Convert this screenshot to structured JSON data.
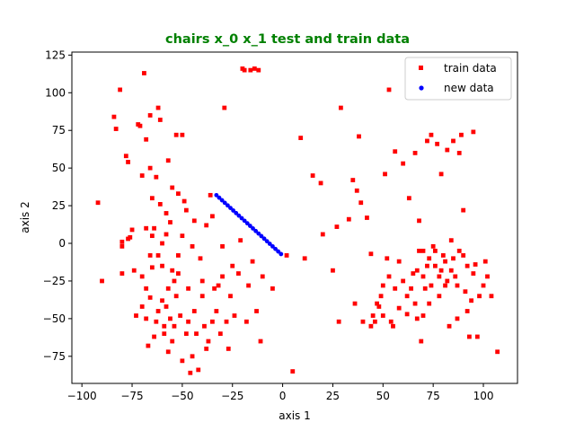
{
  "chart_data": {
    "type": "scatter",
    "title": "chairs x_0 x_1 test and train data",
    "title_color": "#008000",
    "xlabel": "axis 1",
    "ylabel": "axis 2",
    "xlim": [
      -105,
      117
    ],
    "ylim": [
      -93,
      127
    ],
    "xticks": [
      -100,
      -75,
      -50,
      -25,
      0,
      25,
      50,
      75,
      100
    ],
    "yticks": [
      -75,
      -50,
      -25,
      0,
      25,
      50,
      75,
      100,
      125
    ],
    "grid": false,
    "legend_position": "top-right",
    "series": [
      {
        "name": "train data",
        "color": "#ff0000",
        "marker": "square",
        "points": [
          [
            -92,
            27
          ],
          [
            -90,
            -25
          ],
          [
            -84,
            84
          ],
          [
            -83,
            76
          ],
          [
            -81,
            102
          ],
          [
            -80,
            1
          ],
          [
            -80,
            -2
          ],
          [
            -80,
            -20
          ],
          [
            -78,
            58
          ],
          [
            -77,
            54
          ],
          [
            -77,
            3
          ],
          [
            -76,
            4
          ],
          [
            -75,
            9
          ],
          [
            -74,
            -18
          ],
          [
            -73,
            -48
          ],
          [
            -72,
            79
          ],
          [
            -71,
            78
          ],
          [
            -70,
            45
          ],
          [
            -70,
            -42
          ],
          [
            -69,
            113
          ],
          [
            -68,
            69
          ],
          [
            -68,
            10
          ],
          [
            -68,
            -30
          ],
          [
            -68,
            -50
          ],
          [
            -67,
            -68
          ],
          [
            -66,
            50
          ],
          [
            -66,
            85
          ],
          [
            -66,
            -36
          ],
          [
            -65,
            -16
          ],
          [
            -65,
            5
          ],
          [
            -64,
            -62
          ],
          [
            -64,
            10
          ],
          [
            -63,
            44
          ],
          [
            -63,
            -52
          ],
          [
            -62,
            90
          ],
          [
            -62,
            -45
          ],
          [
            -61,
            26
          ],
          [
            -61,
            82
          ],
          [
            -60,
            -15
          ],
          [
            -60,
            -38
          ],
          [
            -59,
            -55
          ],
          [
            -59,
            -60
          ],
          [
            -58,
            20
          ],
          [
            -58,
            -42
          ],
          [
            -57,
            55
          ],
          [
            -57,
            -72
          ],
          [
            -56,
            -50
          ],
          [
            -56,
            14
          ],
          [
            -55,
            37
          ],
          [
            -54,
            -55
          ],
          [
            -54,
            -25
          ],
          [
            -53,
            72
          ],
          [
            -53,
            -35
          ],
          [
            -52,
            33
          ],
          [
            -52,
            -8
          ],
          [
            -51,
            -48
          ],
          [
            -50,
            72
          ],
          [
            -50,
            -78
          ],
          [
            -49,
            28
          ],
          [
            -48,
            22
          ],
          [
            -47,
            -30
          ],
          [
            -47,
            -52
          ],
          [
            -46,
            -86
          ],
          [
            -45,
            -75
          ],
          [
            -44,
            15
          ],
          [
            -43,
            -60
          ],
          [
            -42,
            -84
          ],
          [
            -41,
            -10
          ],
          [
            -40,
            -25
          ],
          [
            -39,
            -55
          ],
          [
            -38,
            -70
          ],
          [
            -37,
            -65
          ],
          [
            -36,
            32
          ],
          [
            -35,
            -52
          ],
          [
            -34,
            -30
          ],
          [
            -33,
            -45
          ],
          [
            -32,
            -28
          ],
          [
            -31,
            -60
          ],
          [
            -30,
            -2
          ],
          [
            -29,
            90
          ],
          [
            -28,
            -52
          ],
          [
            -27,
            -70
          ],
          [
            -26,
            -35
          ],
          [
            -25,
            -15
          ],
          [
            -24,
            -48
          ],
          [
            -22,
            -20
          ],
          [
            -21,
            2
          ],
          [
            -20,
            116
          ],
          [
            -19,
            115
          ],
          [
            -18,
            -52
          ],
          [
            -17,
            -28
          ],
          [
            -16,
            115
          ],
          [
            -15,
            -12
          ],
          [
            -14,
            116
          ],
          [
            -13,
            -45
          ],
          [
            -12,
            115
          ],
          [
            -11,
            -65
          ],
          [
            -10,
            -22
          ],
          [
            -5,
            -30
          ],
          [
            2,
            -8
          ],
          [
            5,
            -85
          ],
          [
            9,
            70
          ],
          [
            11,
            -10
          ],
          [
            15,
            45
          ],
          [
            19,
            40
          ],
          [
            20,
            6
          ],
          [
            25,
            -18
          ],
          [
            27,
            11
          ],
          [
            28,
            -52
          ],
          [
            29,
            90
          ],
          [
            33,
            16
          ],
          [
            35,
            42
          ],
          [
            36,
            -40
          ],
          [
            37,
            35
          ],
          [
            38,
            71
          ],
          [
            39,
            27
          ],
          [
            40,
            -52
          ],
          [
            42,
            17
          ],
          [
            44,
            -7
          ],
          [
            45,
            -48
          ],
          [
            46,
            -52
          ],
          [
            48,
            -42
          ],
          [
            49,
            -35
          ],
          [
            50,
            -48
          ],
          [
            51,
            46
          ],
          [
            52,
            -10
          ],
          [
            53,
            102
          ],
          [
            54,
            -52
          ],
          [
            55,
            -55
          ],
          [
            56,
            61
          ],
          [
            58,
            -43
          ],
          [
            60,
            53
          ],
          [
            62,
            -47
          ],
          [
            63,
            30
          ],
          [
            65,
            -20
          ],
          [
            66,
            60
          ],
          [
            67,
            -50
          ],
          [
            68,
            15
          ],
          [
            69,
            -65
          ],
          [
            70,
            -5
          ],
          [
            71,
            -30
          ],
          [
            72,
            68
          ],
          [
            73,
            -40
          ],
          [
            74,
            72
          ],
          [
            75,
            -2
          ],
          [
            76,
            -15
          ],
          [
            77,
            66
          ],
          [
            78,
            -35
          ],
          [
            79,
            46
          ],
          [
            80,
            -8
          ],
          [
            81,
            -28
          ],
          [
            82,
            62
          ],
          [
            83,
            -55
          ],
          [
            84,
            2
          ],
          [
            85,
            68
          ],
          [
            86,
            -22
          ],
          [
            87,
            -50
          ],
          [
            88,
            60
          ],
          [
            89,
            72
          ],
          [
            90,
            22
          ],
          [
            91,
            -32
          ],
          [
            92,
            -45
          ],
          [
            93,
            -62
          ],
          [
            94,
            -38
          ],
          [
            95,
            74
          ],
          [
            96,
            -14
          ],
          [
            97,
            -62
          ],
          [
            98,
            -35
          ],
          [
            100,
            -28
          ],
          [
            101,
            -12
          ],
          [
            102,
            -22
          ],
          [
            104,
            -35
          ],
          [
            107,
            -72
          ],
          [
            -65,
            30
          ],
          [
            -58,
            6
          ],
          [
            -55,
            -18
          ],
          [
            -45,
            -2
          ],
          [
            -40,
            -35
          ],
          [
            -35,
            18
          ],
          [
            -62,
            -8
          ],
          [
            -70,
            -22
          ],
          [
            -55,
            -65
          ],
          [
            -48,
            -60
          ],
          [
            -52,
            -20
          ],
          [
            -60,
            0
          ],
          [
            -66,
            -8
          ],
          [
            -57,
            -30
          ],
          [
            -50,
            5
          ],
          [
            -44,
            -45
          ],
          [
            -38,
            12
          ],
          [
            -30,
            -22
          ],
          [
            58,
            -12
          ],
          [
            60,
            -25
          ],
          [
            64,
            -30
          ],
          [
            67,
            -18
          ],
          [
            70,
            -22
          ],
          [
            73,
            -10
          ],
          [
            76,
            -5
          ],
          [
            79,
            -18
          ],
          [
            82,
            -25
          ],
          [
            85,
            -10
          ],
          [
            88,
            -5
          ],
          [
            62,
            -35
          ],
          [
            66,
            -40
          ],
          [
            70,
            -48
          ],
          [
            74,
            -28
          ],
          [
            78,
            -22
          ],
          [
            81,
            -12
          ],
          [
            84,
            -18
          ],
          [
            87,
            -28
          ],
          [
            90,
            -8
          ],
          [
            92,
            -15
          ],
          [
            95,
            -20
          ],
          [
            68,
            -5
          ],
          [
            72,
            -15
          ],
          [
            56,
            -30
          ],
          [
            53,
            -22
          ],
          [
            50,
            -28
          ],
          [
            47,
            -40
          ],
          [
            44,
            -55
          ]
        ]
      },
      {
        "name": "new data",
        "color": "#0000ff",
        "marker": "circle",
        "points": [
          [
            -33,
            32
          ],
          [
            -31.6,
            30.3
          ],
          [
            -30.2,
            28.6
          ],
          [
            -28.8,
            26.9
          ],
          [
            -27.4,
            25.2
          ],
          [
            -26,
            23.5
          ],
          [
            -24.6,
            21.8
          ],
          [
            -23.2,
            20.1
          ],
          [
            -21.8,
            18.4
          ],
          [
            -20.4,
            16.7
          ],
          [
            -19,
            15
          ],
          [
            -17.6,
            13.3
          ],
          [
            -16.2,
            11.6
          ],
          [
            -14.8,
            9.9
          ],
          [
            -13.4,
            8.2
          ],
          [
            -12,
            6.5
          ],
          [
            -10.6,
            4.8
          ],
          [
            -9.2,
            3.1
          ],
          [
            -7.8,
            1.4
          ],
          [
            -6.4,
            -0.3
          ],
          [
            -5,
            -2
          ],
          [
            -3.6,
            -3.7
          ],
          [
            -2.2,
            -5.4
          ],
          [
            -0.8,
            -7.1
          ]
        ]
      }
    ]
  }
}
